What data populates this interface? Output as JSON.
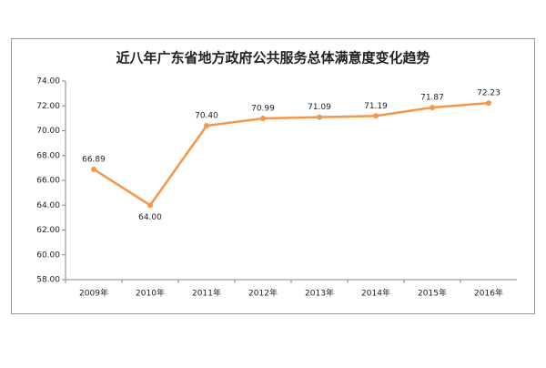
{
  "chart_data": {
    "type": "line",
    "title": "近八年广东省地方政府公共服务总体满意度变化趋势",
    "categories": [
      "2009年",
      "2010年",
      "2011年",
      "2012年",
      "2013年",
      "2014年",
      "2015年",
      "2016年"
    ],
    "series": [
      {
        "color": "#f79646",
        "values": [
          66.89,
          64.0,
          70.4,
          70.99,
          71.09,
          71.19,
          71.87,
          72.23
        ],
        "value_labels": [
          "66.89",
          "64.00",
          "70.40",
          "70.99",
          "71.09",
          "71.19",
          "71.87",
          "72.23"
        ]
      }
    ],
    "ylim": [
      58,
      74
    ],
    "yticks": [
      {
        "value": 58,
        "label": "58.00"
      },
      {
        "value": 60,
        "label": "60.00"
      },
      {
        "value": 62,
        "label": "62.00"
      },
      {
        "value": 64,
        "label": "64.00"
      },
      {
        "value": 66,
        "label": "66.00"
      },
      {
        "value": 68,
        "label": "68.00"
      },
      {
        "value": 70,
        "label": "70.00"
      },
      {
        "value": 72,
        "label": "72.00"
      },
      {
        "value": 74,
        "label": "74.00"
      }
    ],
    "grid": false
  }
}
